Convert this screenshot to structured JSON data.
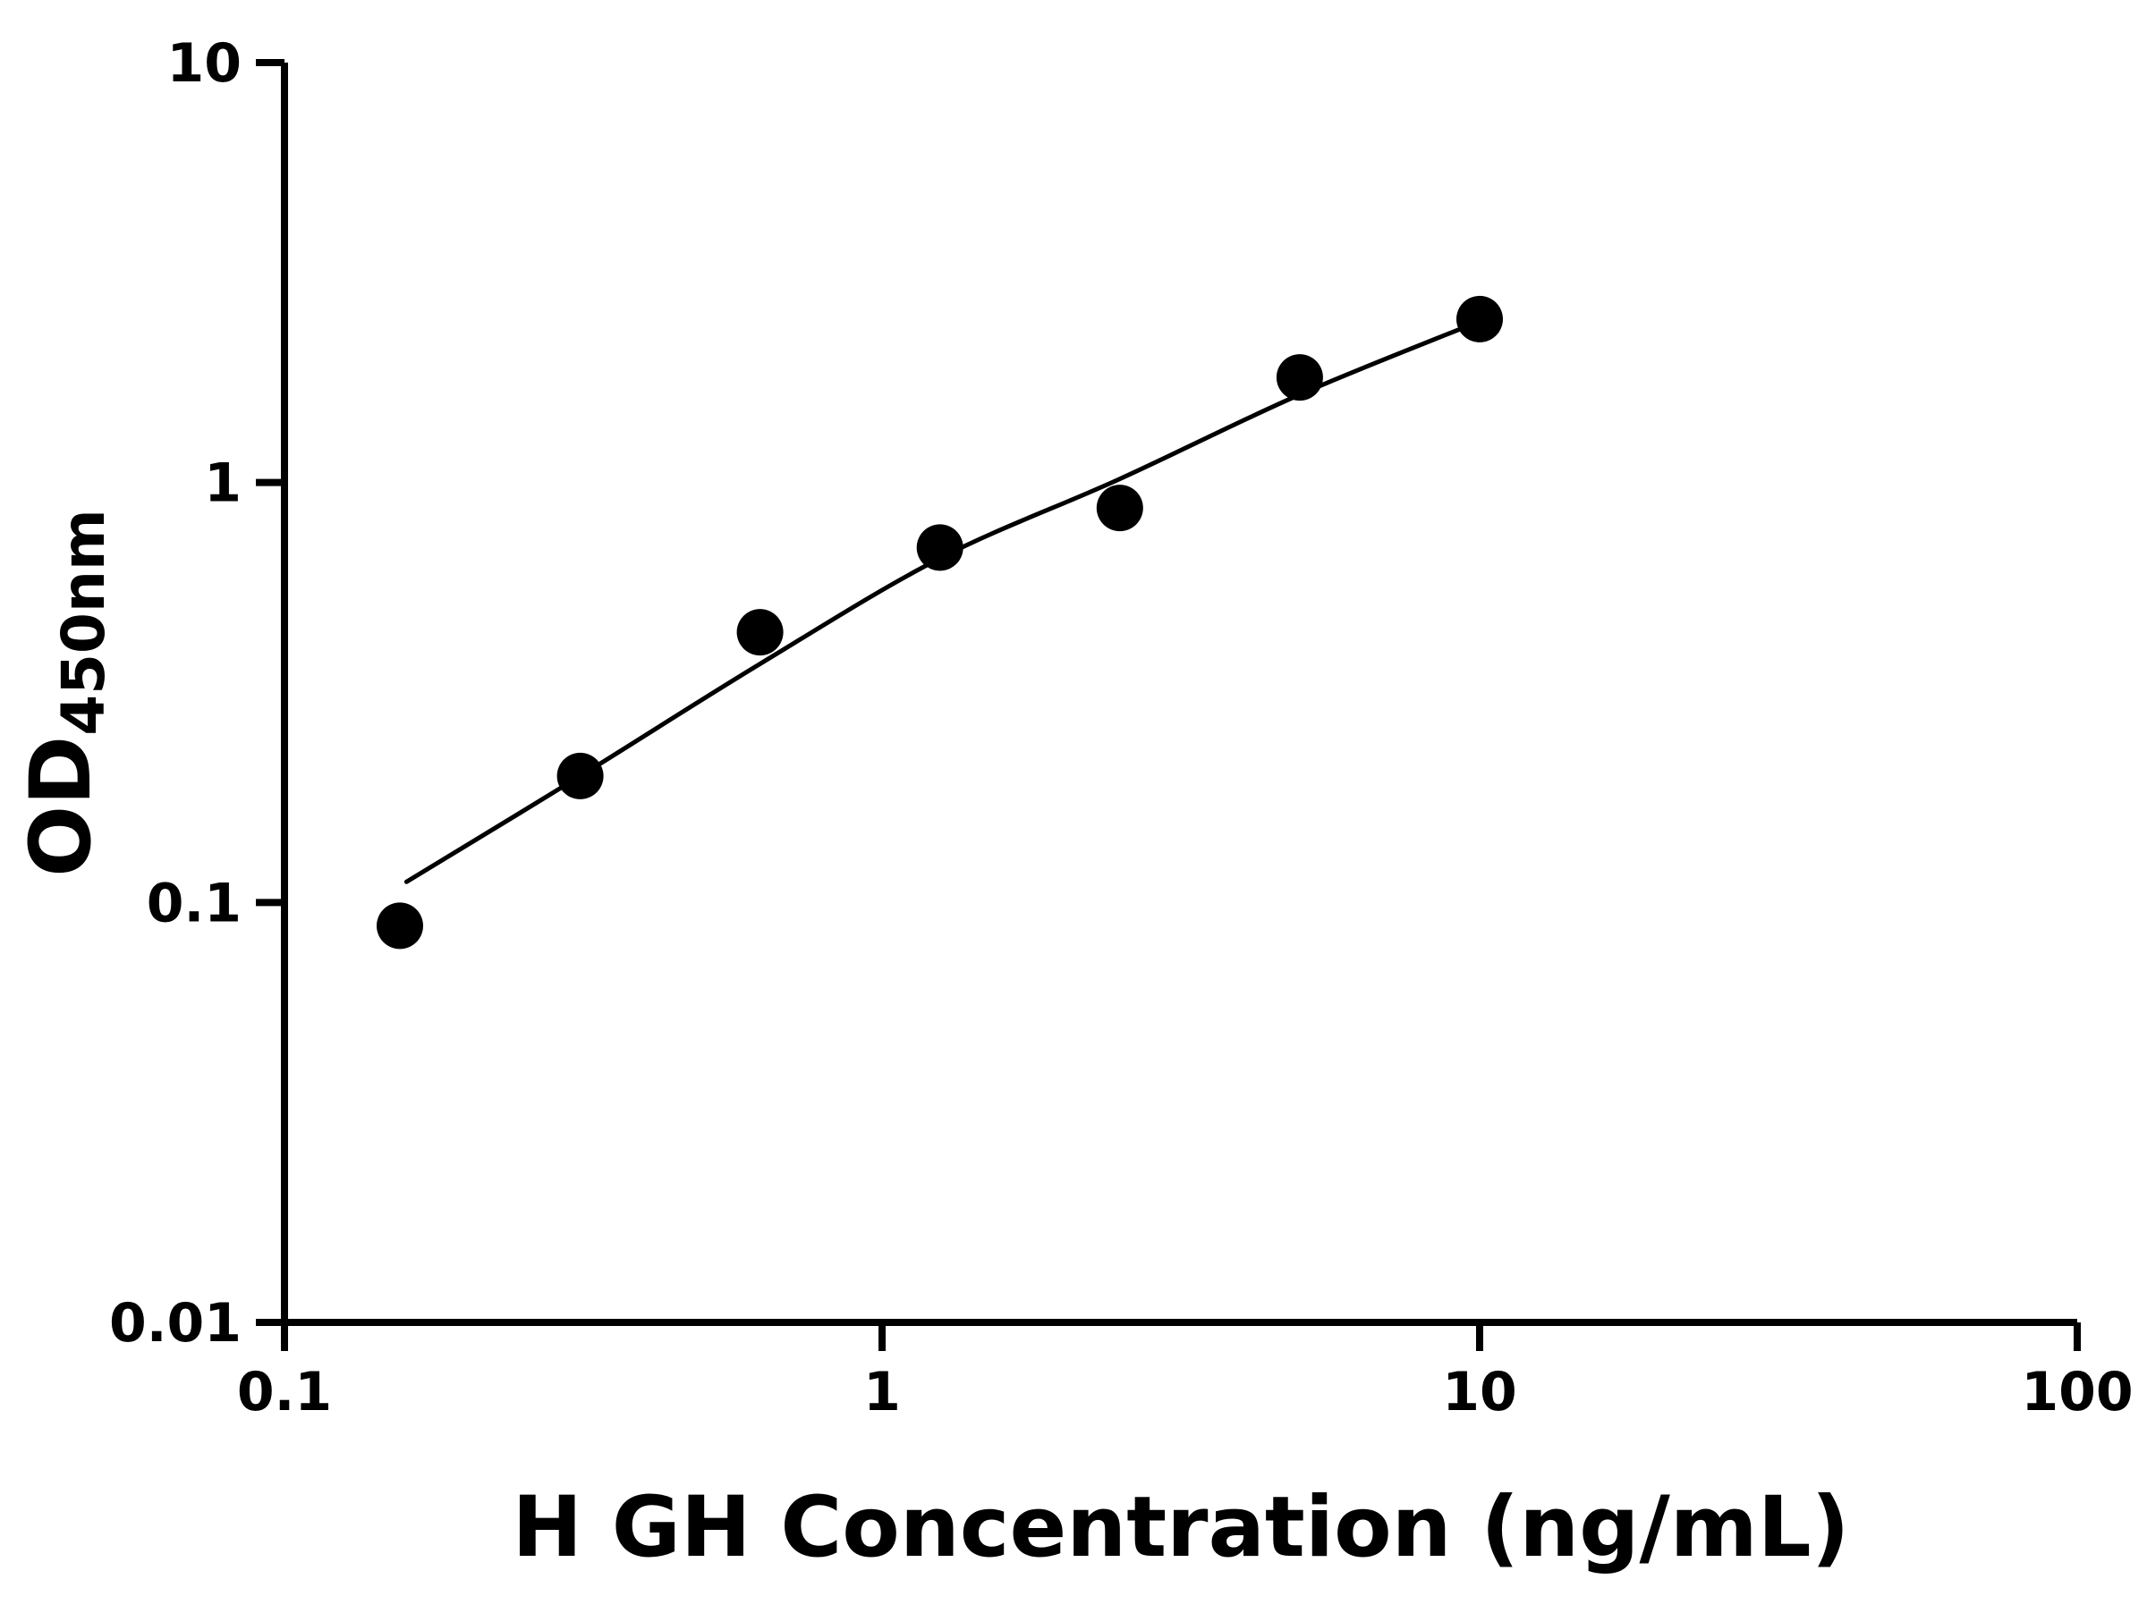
{
  "page": {
    "background_color": "#ffffff",
    "foreground_color": "#000000"
  },
  "chart_data": {
    "type": "scatter",
    "title": "",
    "xlabel": "H GH Concentration (ng/mL)",
    "ylabel_main": "OD",
    "ylabel_sub": "450nm",
    "x_scale": "log",
    "y_scale": "log",
    "xlim": [
      0.1,
      100
    ],
    "ylim": [
      0.01,
      10
    ],
    "x_ticks": [
      0.1,
      1,
      10,
      100
    ],
    "x_tick_labels": [
      "0.1",
      "1",
      "10",
      "100"
    ],
    "y_ticks": [
      0.01,
      0.1,
      1,
      10
    ],
    "y_tick_labels": [
      "0.01",
      "0.1",
      "1",
      "10"
    ],
    "grid": false,
    "legend": "none",
    "marker_color": "#000000",
    "line_color": "#000000",
    "series": [
      {
        "name": "standard-points",
        "type": "scatter",
        "marker": "circle",
        "points": [
          [
            0.156,
            0.088
          ],
          [
            0.3125,
            0.2
          ],
          [
            0.625,
            0.44
          ],
          [
            1.25,
            0.7
          ],
          [
            2.5,
            0.87
          ],
          [
            5,
            1.78
          ],
          [
            10,
            2.45
          ]
        ]
      },
      {
        "name": "fit-curve",
        "type": "line",
        "points": [
          [
            0.16,
            0.112
          ],
          [
            0.3125,
            0.2
          ],
          [
            0.625,
            0.37
          ],
          [
            1.25,
            0.66
          ],
          [
            2.5,
            1.02
          ],
          [
            5,
            1.62
          ],
          [
            10,
            2.42
          ]
        ]
      }
    ]
  }
}
